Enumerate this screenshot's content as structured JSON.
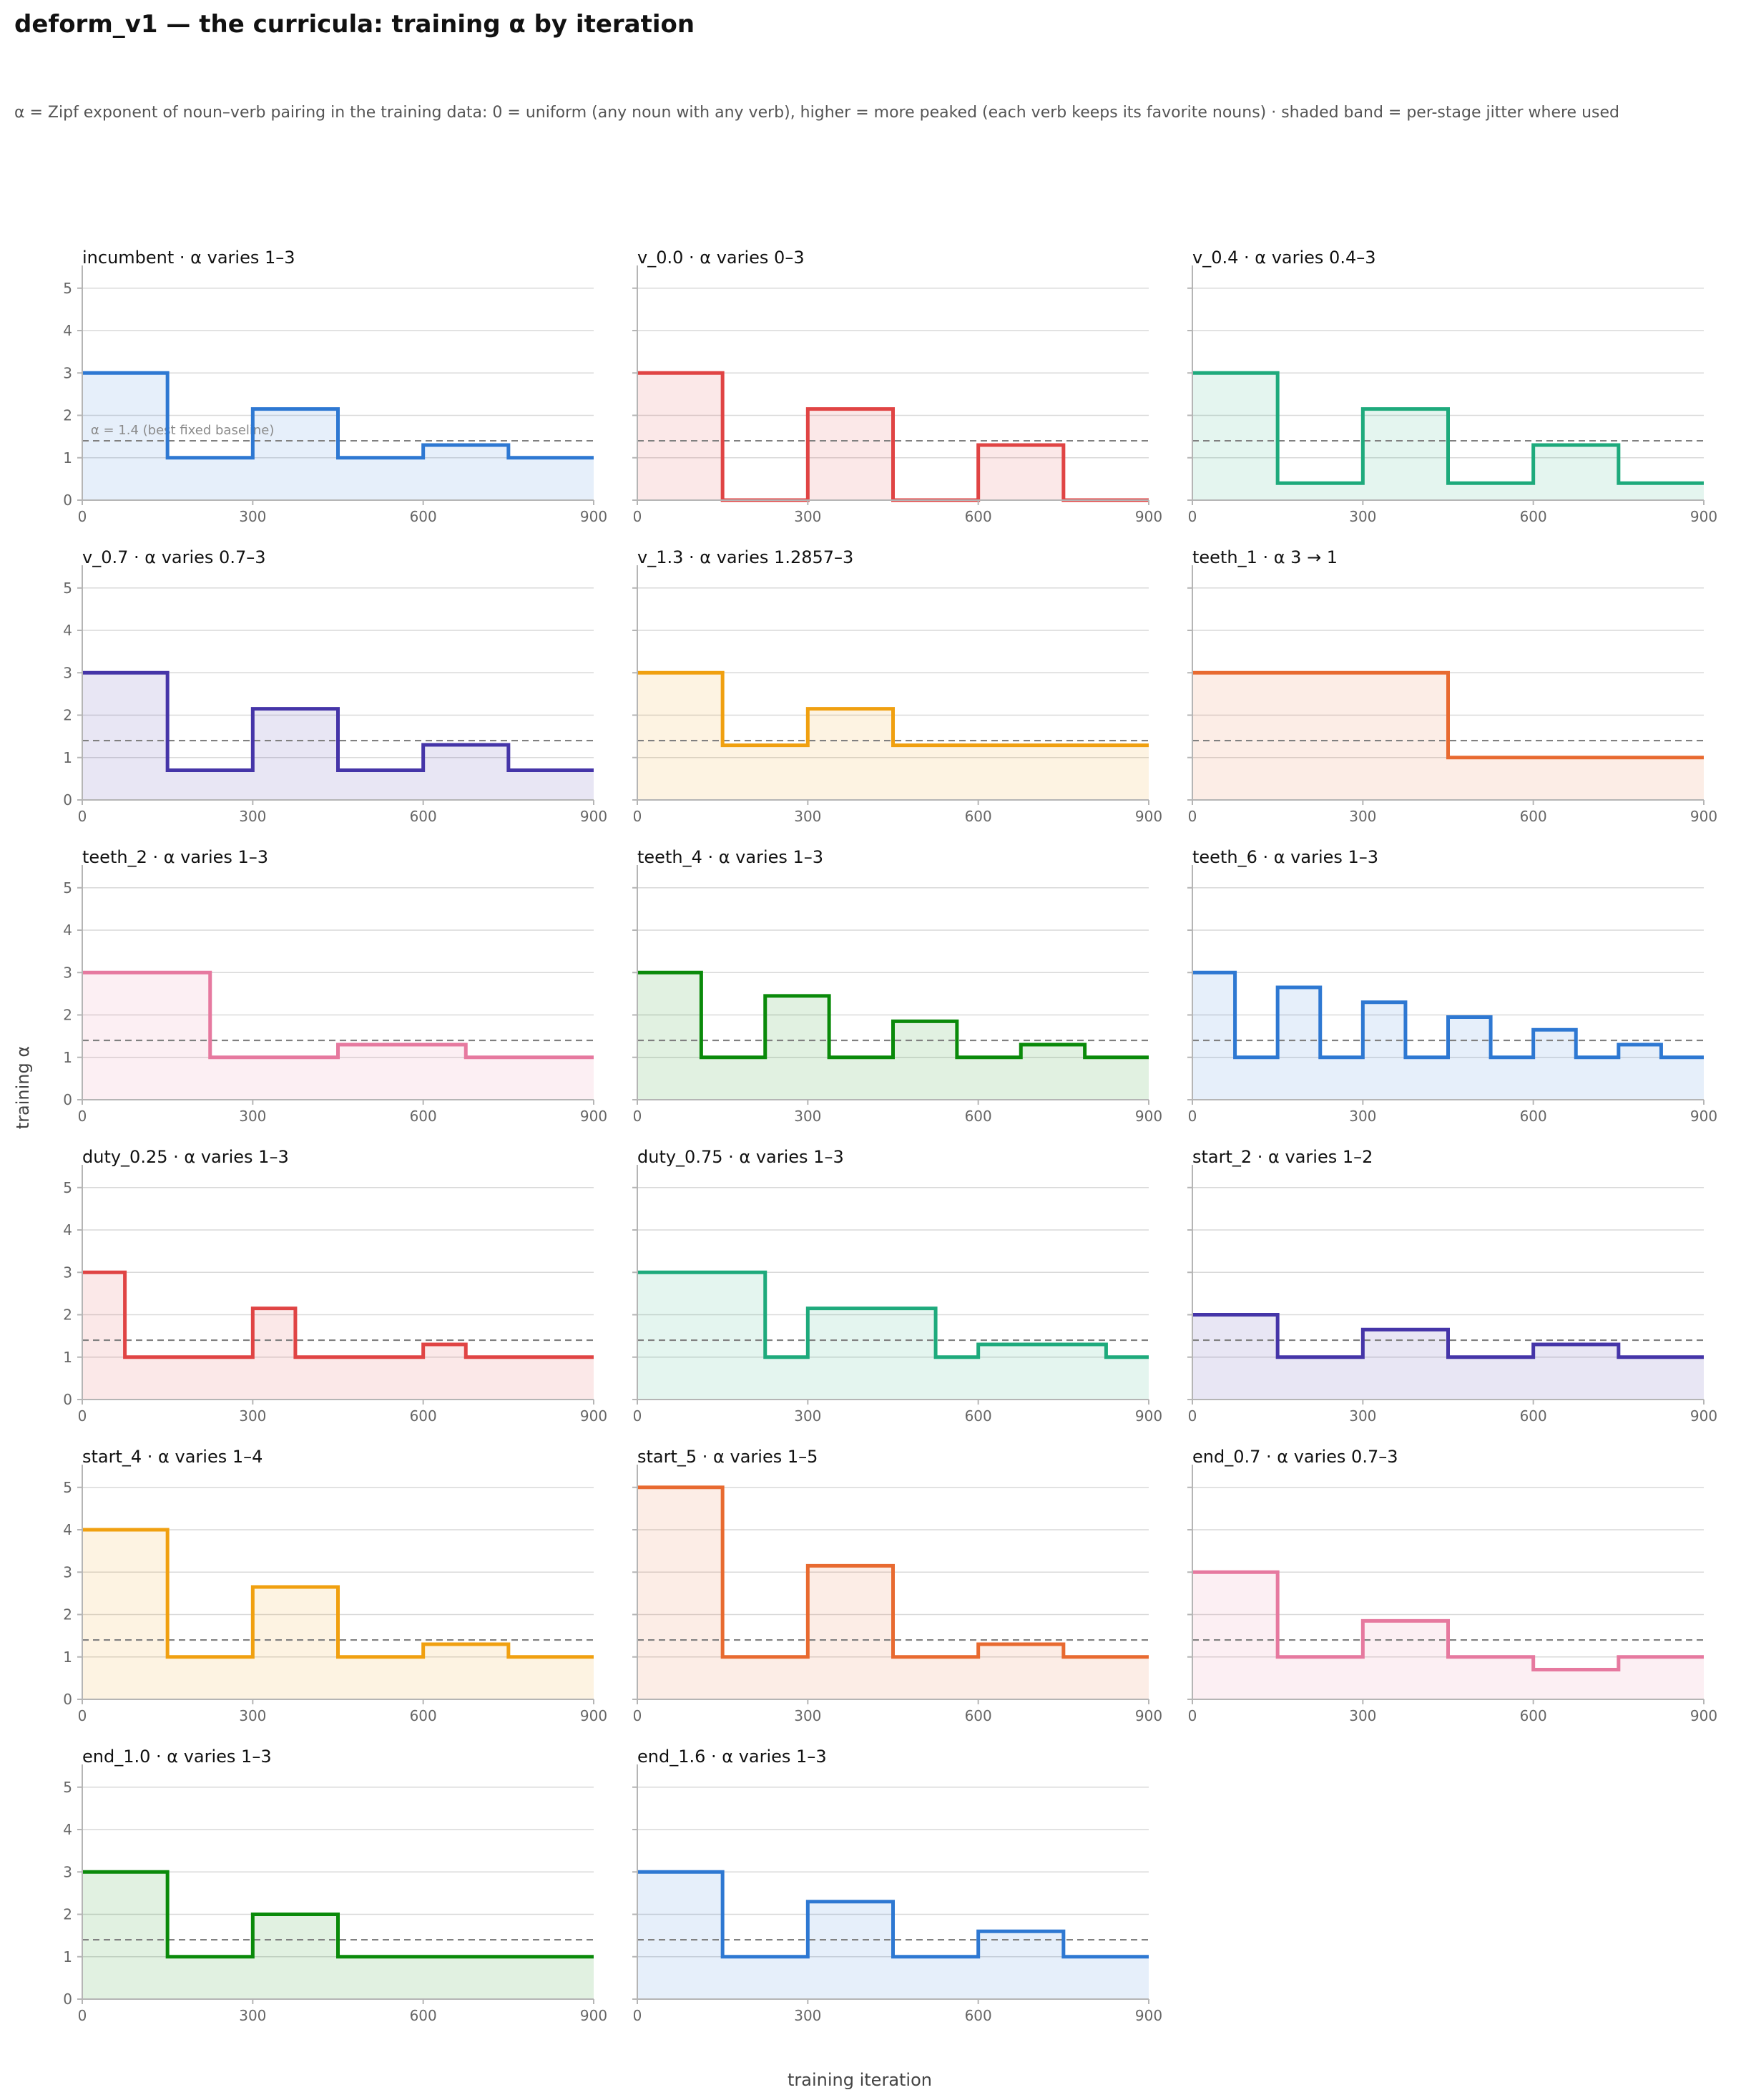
{
  "title": "deform_v1 — the curricula: training α by iteration",
  "subtitle": "α = Zipf exponent of noun–verb pairing in the training data: 0 = uniform (any noun with any verb), higher = more peaked (each verb keeps its favorite nouns) · shaded band = per-stage jitter where used",
  "xlabel": "training iteration",
  "ylabel": "training α",
  "baseline_label": "α = 1.4 (best fixed baseline)",
  "chart_data": {
    "type": "line",
    "step": true,
    "xlim": [
      0,
      900
    ],
    "ylim": [
      0,
      5.3
    ],
    "xticks": [
      0,
      300,
      600,
      900
    ],
    "yticks": [
      0,
      1,
      2,
      3,
      4,
      5
    ],
    "grid": "horizontal",
    "baseline": 1.4,
    "panels": [
      {
        "name": "incumbent",
        "subtitle": "α varies 1–3",
        "color": "#2e78d2",
        "x": [
          0,
          150,
          300,
          450,
          600,
          750,
          900
        ],
        "y": [
          3,
          1,
          2.15,
          1,
          1.3,
          1,
          1
        ],
        "show_baseline_label": true
      },
      {
        "name": "v_0.0",
        "subtitle": "α varies 0–3",
        "color": "#e04444",
        "x": [
          0,
          150,
          300,
          450,
          600,
          750,
          900
        ],
        "y": [
          3,
          0,
          2.15,
          0,
          1.3,
          0,
          0
        ]
      },
      {
        "name": "v_0.4",
        "subtitle": "α varies 0.4–3",
        "color": "#1eaa7c",
        "x": [
          0,
          150,
          300,
          450,
          600,
          750,
          900
        ],
        "y": [
          3,
          0.4,
          2.15,
          0.4,
          1.3,
          0.4,
          0.4
        ]
      },
      {
        "name": "v_0.7",
        "subtitle": "α varies 0.7–3",
        "color": "#4535a8",
        "x": [
          0,
          150,
          300,
          450,
          600,
          750,
          900
        ],
        "y": [
          3,
          0.7,
          2.15,
          0.7,
          1.3,
          0.7,
          0.7
        ]
      },
      {
        "name": "v_1.3",
        "subtitle": "α varies 1.2857–3",
        "color": "#f0a010",
        "x": [
          0,
          150,
          300,
          450,
          600,
          750,
          900
        ],
        "y": [
          3,
          1.29,
          2.15,
          1.29,
          1.29,
          1.29,
          1.29
        ]
      },
      {
        "name": "teeth_1",
        "subtitle": "α 3 → 1",
        "color": "#e86a30",
        "x": [
          0,
          450,
          900
        ],
        "y": [
          3,
          1,
          1
        ]
      },
      {
        "name": "teeth_2",
        "subtitle": "α varies 1–3",
        "color": "#e6799f",
        "x": [
          0,
          225,
          450,
          675,
          900
        ],
        "y": [
          3,
          1,
          1.3,
          1,
          1
        ]
      },
      {
        "name": "teeth_4",
        "subtitle": "α varies 1–3",
        "color": "#0a8a0a",
        "x": [
          0,
          112.5,
          225,
          337.5,
          450,
          562.5,
          675,
          787.5,
          900
        ],
        "y": [
          3,
          1,
          2.45,
          1,
          1.85,
          1,
          1.3,
          1,
          1
        ]
      },
      {
        "name": "teeth_6",
        "subtitle": "α varies 1–3",
        "color": "#2e78d2",
        "x": [
          0,
          75,
          150,
          225,
          300,
          375,
          450,
          525,
          600,
          675,
          750,
          825,
          900
        ],
        "y": [
          3,
          1,
          2.65,
          1,
          2.3,
          1,
          1.95,
          1,
          1.65,
          1,
          1.3,
          1,
          1
        ]
      },
      {
        "name": "duty_0.25",
        "subtitle": "α varies 1–3",
        "color": "#e04444",
        "x": [
          0,
          75,
          300,
          375,
          600,
          675,
          900
        ],
        "y": [
          3,
          1,
          2.15,
          1,
          1.3,
          1,
          1
        ]
      },
      {
        "name": "duty_0.75",
        "subtitle": "α varies 1–3",
        "color": "#1eaa7c",
        "x": [
          0,
          225,
          300,
          525,
          600,
          825,
          900
        ],
        "y": [
          3,
          1,
          2.15,
          1,
          1.3,
          1,
          1
        ]
      },
      {
        "name": "start_2",
        "subtitle": "α varies 1–2",
        "color": "#4535a8",
        "x": [
          0,
          150,
          300,
          450,
          600,
          750,
          900
        ],
        "y": [
          2,
          1,
          1.65,
          1,
          1.3,
          1,
          1
        ]
      },
      {
        "name": "start_4",
        "subtitle": "α varies 1–4",
        "color": "#f0a010",
        "x": [
          0,
          150,
          300,
          450,
          600,
          750,
          900
        ],
        "y": [
          4,
          1,
          2.65,
          1,
          1.3,
          1,
          1
        ]
      },
      {
        "name": "start_5",
        "subtitle": "α varies 1–5",
        "color": "#e86a30",
        "x": [
          0,
          150,
          300,
          450,
          600,
          750,
          900
        ],
        "y": [
          5,
          1,
          3.15,
          1,
          1.3,
          1,
          1
        ]
      },
      {
        "name": "end_0.7",
        "subtitle": "α varies 0.7–3",
        "color": "#e6799f",
        "x": [
          0,
          150,
          300,
          450,
          600,
          750,
          900
        ],
        "y": [
          3,
          1,
          1.85,
          1,
          0.7,
          1,
          1
        ]
      },
      {
        "name": "end_1.0",
        "subtitle": "α varies 1–3",
        "color": "#0a8a0a",
        "x": [
          0,
          150,
          300,
          450,
          600,
          750,
          900
        ],
        "y": [
          3,
          1,
          2,
          1,
          1,
          1,
          1
        ]
      },
      {
        "name": "end_1.6",
        "subtitle": "α varies 1–3",
        "color": "#2e78d2",
        "x": [
          0,
          150,
          300,
          450,
          600,
          750,
          900
        ],
        "y": [
          3,
          1,
          2.3,
          1,
          1.6,
          1,
          1
        ]
      }
    ]
  }
}
